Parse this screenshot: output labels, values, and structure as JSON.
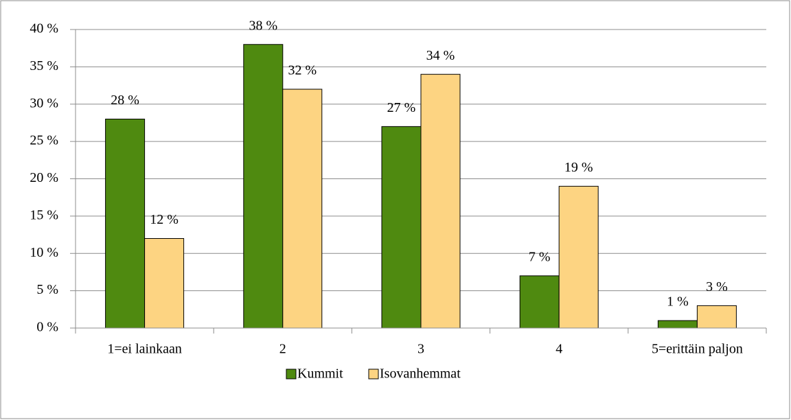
{
  "chart_data": {
    "type": "bar",
    "categories": [
      "1=ei lainkaan",
      "2",
      "3",
      "4",
      "5=erittäin paljon"
    ],
    "series": [
      {
        "name": "Kummit",
        "color": "#4f8a10",
        "values": [
          28,
          38,
          27,
          7,
          1
        ],
        "value_labels": [
          "28 %",
          "38 %",
          "27 %",
          "7 %",
          "1 %"
        ]
      },
      {
        "name": "Isovanhemmat",
        "color": "#fdd482",
        "values": [
          12,
          32,
          34,
          19,
          3
        ],
        "value_labels": [
          "12 %",
          "32 %",
          "34 %",
          "19 %",
          "3 %"
        ]
      }
    ],
    "ylim": [
      0,
      40
    ],
    "yticks": [
      {
        "value": 0,
        "label": "0 %"
      },
      {
        "value": 5,
        "label": "5 %"
      },
      {
        "value": 10,
        "label": "10 %"
      },
      {
        "value": 15,
        "label": "15 %"
      },
      {
        "value": 20,
        "label": "20 %"
      },
      {
        "value": 25,
        "label": "25 %"
      },
      {
        "value": 30,
        "label": "30 %"
      },
      {
        "value": 35,
        "label": "35 %"
      },
      {
        "value": 40,
        "label": "40 %"
      }
    ],
    "grid": true,
    "legend": "bottom"
  }
}
